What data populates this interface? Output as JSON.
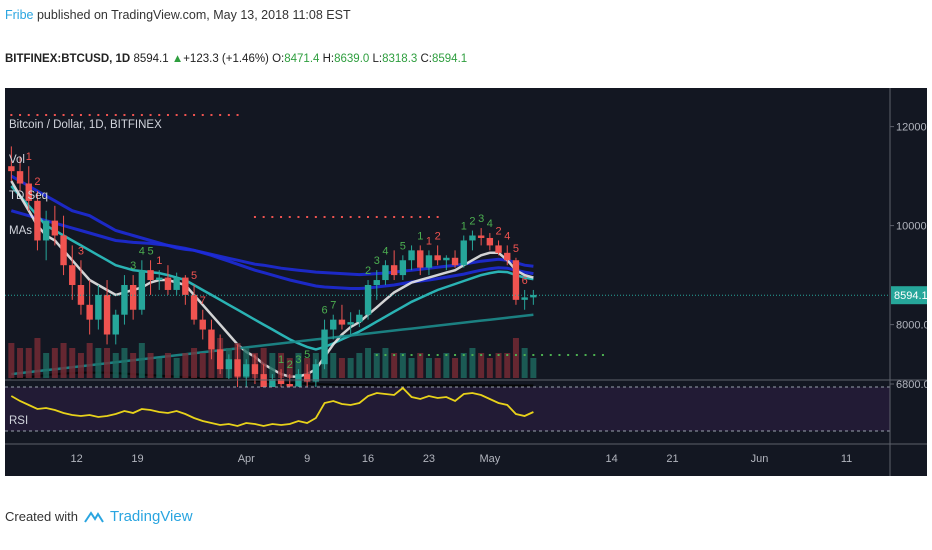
{
  "header": {
    "author": "Fribe",
    "published_text": "published on TradingView.com, May 13, 2018 11:08 EST"
  },
  "ticker_line": {
    "symbol": "BITFINEX:BTCUSD, 1D",
    "last": "8594.1",
    "change": "+123.3 (+1.46%)",
    "open_label": "O:",
    "open": "8471.4",
    "high_label": "H:",
    "high": "8639.0",
    "low_label": "L:",
    "low": "8318.3",
    "close_label": "C:",
    "close": "8594.1"
  },
  "legend": {
    "title": "Bitcoin / Dollar, 1D, BITFINEX",
    "items": [
      "Vol",
      "TD Seq",
      "MAs"
    ]
  },
  "rsi_label": "RSI",
  "price_label": "8594.1",
  "footer": {
    "created_with": "Created with",
    "brand": "TradingView"
  },
  "colors": {
    "background": "#131722",
    "rsi_background": "#221b35",
    "up": "#26a69a",
    "down": "#ef5350",
    "rsi_line": "#e8d21a",
    "ma_blue": "#1e2bd8",
    "ma_cyan": "#2ec4c4",
    "ma_teal": "#1d8c8c",
    "ma_white": "#e8e8e8",
    "ma_black": "#050505"
  },
  "chart_data": {
    "type": "candlestick",
    "symbol": "BITFINEX:BTCUSD",
    "interval": "1D",
    "price_axis_ticks": [
      12000.0,
      10000.0,
      8000.0,
      6800.0
    ],
    "price_axis_labels": [
      "12000.0",
      "10000.0",
      "8000.0",
      "6800.0"
    ],
    "date_axis_labels": [
      "12",
      "19",
      "Apr",
      "9",
      "16",
      "23",
      "May",
      "14",
      "21",
      "Jun",
      "11"
    ],
    "date_axis_positions": [
      7.5,
      14.5,
      27,
      34,
      41,
      48,
      55,
      69,
      76,
      86,
      96
    ],
    "ohlc": [
      [
        11.2,
        11.6,
        10.9,
        11.1
      ],
      [
        11.1,
        11.4,
        10.7,
        10.85
      ],
      [
        10.85,
        11.2,
        10.3,
        10.5
      ],
      [
        10.5,
        10.7,
        9.5,
        9.7
      ],
      [
        9.7,
        10.3,
        9.3,
        10.1
      ],
      [
        10.1,
        10.4,
        9.6,
        9.8
      ],
      [
        9.8,
        10.2,
        9.0,
        9.2
      ],
      [
        9.2,
        9.6,
        8.5,
        8.8
      ],
      [
        8.8,
        9.3,
        8.2,
        8.4
      ],
      [
        8.4,
        8.9,
        7.8,
        8.1
      ],
      [
        8.1,
        8.8,
        7.9,
        8.6
      ],
      [
        8.6,
        8.9,
        7.6,
        7.8
      ],
      [
        7.8,
        8.3,
        7.6,
        8.2
      ],
      [
        8.2,
        9.0,
        8.0,
        8.8
      ],
      [
        8.8,
        9.0,
        8.1,
        8.3
      ],
      [
        8.3,
        9.3,
        8.2,
        9.1
      ],
      [
        9.1,
        9.3,
        8.6,
        8.9
      ],
      [
        8.9,
        9.1,
        8.7,
        8.95
      ],
      [
        8.95,
        9.2,
        8.6,
        8.7
      ],
      [
        8.7,
        9.05,
        8.6,
        8.95
      ],
      [
        8.95,
        9.0,
        8.4,
        8.6
      ],
      [
        8.6,
        8.8,
        8.0,
        8.1
      ],
      [
        8.1,
        8.3,
        7.7,
        7.9
      ],
      [
        7.9,
        8.1,
        7.3,
        7.5
      ],
      [
        7.5,
        7.8,
        7.0,
        7.1
      ],
      [
        7.1,
        7.4,
        6.9,
        7.3
      ],
      [
        7.3,
        7.6,
        6.7,
        6.95
      ],
      [
        6.95,
        7.3,
        6.6,
        7.2
      ],
      [
        7.2,
        7.4,
        6.8,
        7.0
      ],
      [
        7.0,
        7.2,
        6.5,
        6.7
      ],
      [
        6.7,
        7.0,
        6.5,
        6.9
      ],
      [
        6.9,
        7.1,
        6.6,
        6.8
      ],
      [
        6.8,
        7.0,
        6.6,
        6.75
      ],
      [
        6.75,
        7.1,
        6.7,
        7.0
      ],
      [
        7.0,
        7.2,
        6.75,
        6.85
      ],
      [
        6.85,
        7.3,
        6.7,
        7.2
      ],
      [
        7.2,
        8.1,
        7.1,
        7.9
      ],
      [
        7.9,
        8.2,
        7.7,
        8.1
      ],
      [
        8.1,
        8.4,
        7.9,
        8.0
      ],
      [
        8.0,
        8.25,
        7.8,
        8.05
      ],
      [
        8.05,
        8.3,
        7.95,
        8.2
      ],
      [
        8.2,
        8.9,
        8.1,
        8.8
      ],
      [
        8.8,
        9.1,
        8.5,
        8.9
      ],
      [
        8.9,
        9.3,
        8.8,
        9.2
      ],
      [
        9.2,
        9.5,
        8.9,
        9.0
      ],
      [
        9.0,
        9.4,
        8.9,
        9.3
      ],
      [
        9.3,
        9.6,
        9.1,
        9.5
      ],
      [
        9.5,
        9.6,
        9.0,
        9.15
      ],
      [
        9.15,
        9.5,
        9.0,
        9.4
      ],
      [
        9.4,
        9.6,
        9.2,
        9.3
      ],
      [
        9.3,
        9.4,
        9.1,
        9.35
      ],
      [
        9.35,
        9.5,
        9.15,
        9.2
      ],
      [
        9.2,
        9.8,
        9.15,
        9.7
      ],
      [
        9.7,
        9.9,
        9.5,
        9.8
      ],
      [
        9.8,
        9.95,
        9.6,
        9.75
      ],
      [
        9.75,
        9.85,
        9.5,
        9.6
      ],
      [
        9.6,
        9.7,
        9.4,
        9.45
      ],
      [
        9.45,
        9.6,
        9.2,
        9.3
      ],
      [
        9.3,
        9.35,
        8.4,
        8.5
      ],
      [
        8.5,
        8.7,
        8.3,
        8.55
      ],
      [
        8.55,
        8.7,
        8.4,
        8.6
      ]
    ],
    "volume": [
      7,
      6,
      6,
      8,
      5,
      6,
      7,
      6,
      5,
      7,
      6,
      6,
      5,
      6,
      5,
      7,
      5,
      4,
      5,
      4,
      5,
      6,
      5,
      7,
      8,
      6,
      7,
      6,
      5,
      6,
      5,
      5,
      4,
      5,
      4,
      5,
      7,
      5,
      4,
      4,
      5,
      6,
      5,
      6,
      5,
      5,
      4,
      5,
      4,
      4,
      5,
      4,
      5,
      6,
      5,
      4,
      5,
      5,
      8,
      6,
      4
    ],
    "rsi": [
      55,
      50,
      46,
      42,
      43,
      41,
      38,
      36,
      35,
      36,
      34,
      35,
      37,
      40,
      38,
      42,
      41,
      39,
      38,
      40,
      37,
      33,
      30,
      28,
      26,
      27,
      25,
      28,
      27,
      25,
      27,
      26,
      27,
      30,
      28,
      33,
      48,
      50,
      47,
      46,
      48,
      55,
      58,
      57,
      56,
      63,
      54,
      52,
      55,
      53,
      54,
      50,
      57,
      58,
      56,
      52,
      48,
      46,
      37,
      35,
      39
    ],
    "ma_series": [
      {
        "color": "ma_blue",
        "values": [
          11.0,
          10.9,
          10.8,
          10.7,
          10.6,
          10.5,
          10.4,
          10.3,
          10.25,
          10.2,
          10.1,
          10.0,
          9.9,
          9.85,
          9.8,
          9.75,
          9.7,
          9.65,
          9.6,
          9.55,
          9.52,
          9.5,
          9.46,
          9.42,
          9.38,
          9.34,
          9.3,
          9.26,
          9.22,
          9.2,
          9.17,
          9.14,
          9.12,
          9.1,
          9.08,
          9.06,
          9.05,
          9.04,
          9.03,
          9.02,
          9.01,
          9.02,
          9.03,
          9.04,
          9.06,
          9.08,
          9.1,
          9.12,
          9.14,
          9.16,
          9.18,
          9.2,
          9.22,
          9.25,
          9.28,
          9.3,
          9.32,
          9.3,
          9.25,
          9.2,
          9.18
        ]
      },
      {
        "color": "ma_blue",
        "values": [
          10.3,
          10.25,
          10.2,
          10.15,
          10.1,
          10.05,
          10.0,
          9.95,
          9.9,
          9.85,
          9.8,
          9.75,
          9.7,
          9.68,
          9.66,
          9.65,
          9.64,
          9.62,
          9.6,
          9.57,
          9.54,
          9.5,
          9.45,
          9.4,
          9.34,
          9.28,
          9.22,
          9.16,
          9.1,
          9.05,
          9.0,
          8.95,
          8.9,
          8.86,
          8.82,
          8.78,
          8.76,
          8.75,
          8.74,
          8.73,
          8.73,
          8.74,
          8.76,
          8.78,
          8.8,
          8.83,
          8.86,
          8.88,
          8.9,
          8.93,
          8.96,
          8.99,
          9.02,
          9.06,
          9.1,
          9.13,
          9.15,
          9.14,
          9.1,
          9.06,
          9.03
        ]
      },
      {
        "color": "ma_cyan",
        "values": [
          10.8,
          10.6,
          10.4,
          10.2,
          10.0,
          9.9,
          9.8,
          9.7,
          9.6,
          9.5,
          9.4,
          9.3,
          9.2,
          9.15,
          9.1,
          9.08,
          9.06,
          9.04,
          9.0,
          8.95,
          8.9,
          8.8,
          8.7,
          8.6,
          8.5,
          8.4,
          8.3,
          8.2,
          8.1,
          8.0,
          7.9,
          7.8,
          7.7,
          7.62,
          7.55,
          7.5,
          7.55,
          7.62,
          7.7,
          7.78,
          7.86,
          7.96,
          8.06,
          8.16,
          8.26,
          8.36,
          8.46,
          8.54,
          8.62,
          8.7,
          8.76,
          8.82,
          8.88,
          8.94,
          9.0,
          9.04,
          9.07,
          9.06,
          9.0,
          8.95,
          8.92
        ]
      },
      {
        "color": "ma_white",
        "values": [
          10.9,
          10.6,
          10.3,
          10.0,
          9.8,
          9.7,
          9.5,
          9.3,
          9.1,
          8.9,
          8.8,
          8.7,
          8.6,
          8.65,
          8.7,
          8.75,
          8.85,
          8.9,
          8.9,
          8.85,
          8.8,
          8.6,
          8.4,
          8.2,
          8.0,
          7.8,
          7.6,
          7.45,
          7.35,
          7.2,
          7.1,
          7.0,
          6.95,
          6.95,
          7.0,
          7.1,
          7.35,
          7.6,
          7.8,
          7.95,
          8.05,
          8.2,
          8.35,
          8.5,
          8.65,
          8.75,
          8.85,
          8.9,
          8.95,
          9.0,
          9.05,
          9.1,
          9.2,
          9.3,
          9.4,
          9.45,
          9.45,
          9.3,
          9.1,
          9.0,
          8.95
        ]
      },
      {
        "color": "ma_teal",
        "values": [
          7.0,
          7.02,
          7.04,
          7.06,
          7.08,
          7.1,
          7.12,
          7.14,
          7.16,
          7.18,
          7.2,
          7.22,
          7.24,
          7.26,
          7.28,
          7.3,
          7.32,
          7.34,
          7.36,
          7.38,
          7.4,
          7.42,
          7.44,
          7.46,
          7.48,
          7.5,
          7.52,
          7.54,
          7.56,
          7.58,
          7.6,
          7.62,
          7.64,
          7.66,
          7.68,
          7.7,
          7.72,
          7.74,
          7.76,
          7.78,
          7.8,
          7.82,
          7.84,
          7.86,
          7.88,
          7.9,
          7.92,
          7.94,
          7.96,
          7.98,
          8.0,
          8.02,
          8.04,
          8.06,
          8.08,
          8.1,
          8.12,
          8.14,
          8.16,
          8.18,
          8.2
        ]
      },
      {
        "color": "ma_black",
        "values": [
          6.9,
          6.92,
          6.94,
          6.96,
          6.98,
          7.0,
          7.01,
          7.02,
          7.03,
          7.03,
          7.03,
          7.03,
          7.02,
          7.01,
          7.0,
          6.99,
          6.98,
          6.97,
          6.96,
          6.95,
          6.94,
          6.93,
          6.92,
          6.91,
          6.9,
          6.89,
          6.88,
          6.87,
          6.86,
          6.85,
          6.84,
          6.83,
          6.82,
          6.81,
          6.8,
          6.8,
          6.79,
          6.79,
          6.78,
          6.78,
          6.78,
          6.78,
          6.77,
          6.77,
          6.77,
          6.77,
          6.77,
          6.77,
          6.77,
          6.77,
          6.77,
          6.77,
          6.77,
          6.77,
          6.77,
          6.77,
          6.77,
          6.77,
          6.77,
          6.77,
          6.77
        ]
      }
    ],
    "td_up_labels": [
      {
        "i": 14,
        "t": "3"
      },
      {
        "i": 15,
        "t": "4"
      },
      {
        "i": 16,
        "t": "5"
      },
      {
        "i": 31,
        "t": "1"
      },
      {
        "i": 32,
        "t": "2"
      },
      {
        "i": 33,
        "t": "3"
      },
      {
        "i": 34,
        "t": "5"
      },
      {
        "i": 36,
        "t": "6"
      },
      {
        "i": 37,
        "t": "7"
      },
      {
        "i": 41,
        "t": "2"
      },
      {
        "i": 42,
        "t": "3"
      },
      {
        "i": 43,
        "t": "4"
      },
      {
        "i": 45,
        "t": "5"
      },
      {
        "i": 47,
        "t": "1"
      },
      {
        "i": 52,
        "t": "1"
      },
      {
        "i": 53,
        "t": "2"
      },
      {
        "i": 54,
        "t": "3"
      },
      {
        "i": 55,
        "t": "4"
      }
    ],
    "td_down_labels": [
      {
        "i": 2,
        "t": "1"
      },
      {
        "i": 3,
        "t": "2"
      },
      {
        "i": 8,
        "t": "3"
      },
      {
        "i": 17,
        "t": "1"
      },
      {
        "i": 21,
        "t": "5"
      },
      {
        "i": 22,
        "t": "7"
      },
      {
        "i": 48,
        "t": "1"
      },
      {
        "i": 49,
        "t": "2"
      },
      {
        "i": 56,
        "t": "2"
      },
      {
        "i": 57,
        "t": "4"
      },
      {
        "i": 58,
        "t": "5"
      },
      {
        "i": 59,
        "t": "6"
      }
    ]
  }
}
